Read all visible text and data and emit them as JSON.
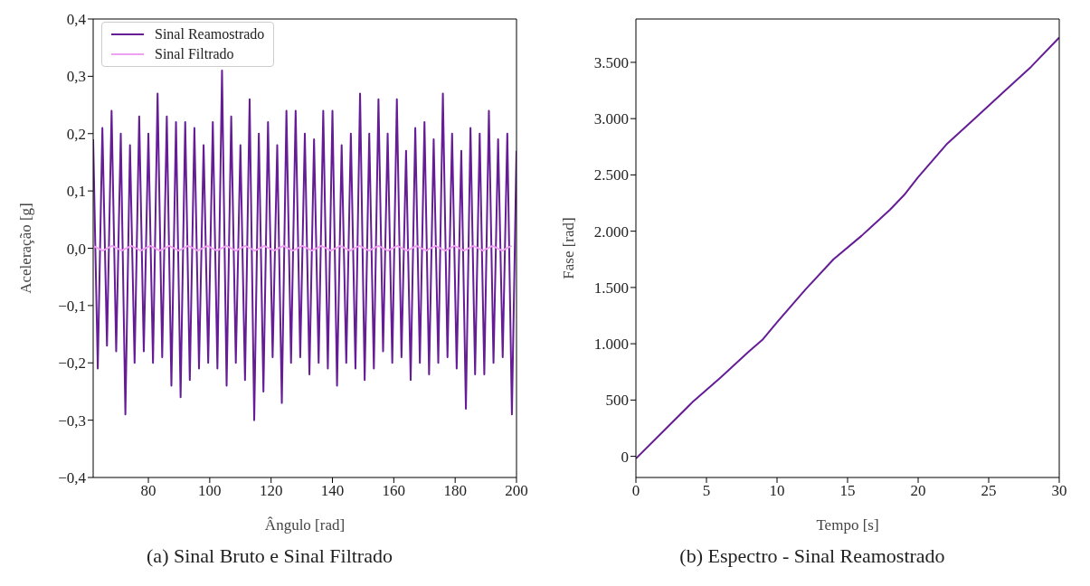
{
  "chart_data": [
    {
      "type": "line",
      "xlabel": "Ângulo [rad]",
      "ylabel": "Aceleração [g]",
      "xlim": [
        62,
        200
      ],
      "xticks": [
        80,
        100,
        120,
        140,
        160,
        180,
        200
      ],
      "ylim": [
        -0.4,
        0.4
      ],
      "yticks": [
        {
          "value": -0.4,
          "label": "−0,4"
        },
        {
          "value": -0.3,
          "label": "−0,3"
        },
        {
          "value": -0.2,
          "label": "−0,2"
        },
        {
          "value": -0.1,
          "label": "−0,1"
        },
        {
          "value": 0,
          "label": "0,0"
        },
        {
          "value": 0.1,
          "label": "0,1"
        },
        {
          "value": 0.2,
          "label": "0,2"
        },
        {
          "value": 0.3,
          "label": "0,3"
        },
        {
          "value": 0.4,
          "label": "0,4"
        }
      ],
      "legend": "top left",
      "annotations": [
        "(a) Sinal Bruto e Sinal Filtrado"
      ],
      "series": [
        {
          "name": "Sinal Reamostrado",
          "color": "#651d96",
          "x": [
            62,
            63.5,
            65,
            66.5,
            68,
            69.5,
            71,
            72.5,
            74,
            75.5,
            77,
            78.5,
            80,
            81.5,
            83,
            84.5,
            86,
            87.5,
            89,
            90.5,
            92,
            93.5,
            95,
            96.5,
            98,
            99.5,
            101,
            102.5,
            104,
            105.5,
            107,
            108.5,
            110,
            111.5,
            113,
            114.5,
            116,
            117.5,
            119,
            120.5,
            122,
            123.5,
            125,
            126.5,
            128,
            129.5,
            131,
            132.5,
            134,
            135.5,
            137,
            138.5,
            140,
            141.5,
            143,
            144.5,
            146,
            147.5,
            149,
            150.5,
            152,
            153.5,
            155,
            156.5,
            158,
            159.5,
            161,
            162.5,
            164,
            165.5,
            167,
            168.5,
            170,
            171.5,
            173,
            174.5,
            176,
            177.5,
            179,
            180.5,
            182,
            183.5,
            185,
            186.5,
            188,
            189.5,
            191,
            192.5,
            194,
            195.5,
            197,
            198.5,
            200
          ],
          "values": [
            0.19,
            -0.21,
            0.21,
            -0.17,
            0.24,
            -0.18,
            0.2,
            -0.29,
            0.18,
            -0.2,
            0.23,
            -0.18,
            0.2,
            -0.2,
            0.27,
            -0.19,
            0.23,
            -0.24,
            0.22,
            -0.26,
            0.22,
            -0.23,
            0.21,
            -0.21,
            0.18,
            -0.2,
            0.22,
            -0.21,
            0.31,
            -0.24,
            0.23,
            -0.2,
            0.18,
            -0.23,
            0.26,
            -0.3,
            0.2,
            -0.25,
            0.22,
            -0.19,
            0.18,
            -0.27,
            0.24,
            -0.2,
            0.24,
            -0.19,
            0.2,
            -0.22,
            0.19,
            -0.2,
            0.24,
            -0.21,
            0.24,
            -0.24,
            0.18,
            -0.2,
            0.2,
            -0.21,
            0.27,
            -0.23,
            0.2,
            -0.21,
            0.26,
            -0.18,
            0.2,
            -0.2,
            0.26,
            -0.19,
            0.17,
            -0.23,
            0.21,
            -0.2,
            0.22,
            -0.22,
            0.19,
            -0.2,
            0.27,
            -0.19,
            0.2,
            -0.21,
            0.17,
            -0.28,
            0.21,
            -0.22,
            0.2,
            -0.22,
            0.24,
            -0.2,
            0.19,
            -0.19,
            0.2,
            -0.29,
            0.17
          ]
        },
        {
          "name": "Sinal Filtrado",
          "color": "#f0a0f0",
          "x": [
            62,
            65.1,
            68.2,
            71.3,
            74.4,
            77.5,
            80.6,
            83.7,
            86.8,
            89.9,
            93,
            96.1,
            99.2,
            102.3,
            105.4,
            108.5,
            111.6,
            114.7,
            117.8,
            120.9,
            124,
            127.1,
            130.2,
            133.3,
            136.4,
            139.5,
            142.6,
            145.7,
            148.8,
            151.9,
            155,
            158.1,
            161.2,
            164.3,
            167.4,
            170.5,
            173.6,
            176.7,
            179.8,
            182.9,
            186,
            189.1,
            192.2,
            195.3,
            198.4
          ],
          "values": [
            0.004,
            -0.004,
            0.004,
            -0.004,
            0.004,
            -0.004,
            0.004,
            -0.004,
            0.004,
            -0.004,
            0.004,
            -0.004,
            0.004,
            -0.004,
            0.004,
            -0.004,
            0.004,
            -0.004,
            0.004,
            -0.004,
            0.004,
            -0.004,
            0.004,
            -0.004,
            0.004,
            -0.004,
            0.004,
            -0.004,
            0.004,
            -0.004,
            0.004,
            -0.004,
            0.004,
            -0.004,
            0.004,
            -0.004,
            0.004,
            -0.004,
            0.004,
            -0.004,
            0.004,
            -0.004,
            0.004,
            -0.004,
            0.004
          ]
        }
      ]
    },
    {
      "type": "line",
      "xlabel": "Tempo [s]",
      "ylabel": "Fase [rad]",
      "xlim": [
        0,
        30
      ],
      "xticks": [
        0,
        5,
        10,
        15,
        20,
        25,
        30
      ],
      "ylim": [
        -188,
        3885
      ],
      "yticks": [
        0,
        500,
        {
          "value": 1000,
          "label": "1.000"
        },
        {
          "value": 1500,
          "label": "1.500"
        },
        {
          "value": 2000,
          "label": "2.000"
        },
        {
          "value": 2500,
          "label": "2.500"
        },
        {
          "value": 3000,
          "label": "3.000"
        },
        {
          "value": 3500,
          "label": "3.500"
        }
      ],
      "annotations": [
        "(b) Espectro - Sinal Reamostrado"
      ],
      "series": [
        {
          "color": "#651d96",
          "x": [
            0,
            2,
            4,
            6,
            8,
            9,
            10,
            12,
            14,
            16,
            18,
            19,
            20,
            22,
            24,
            26,
            28,
            30
          ],
          "values": [
            -20,
            230,
            480,
            700,
            930,
            1040,
            1190,
            1480,
            1750,
            1960,
            2190,
            2320,
            2480,
            2770,
            3000,
            3230,
            3460,
            3720
          ]
        }
      ]
    }
  ]
}
